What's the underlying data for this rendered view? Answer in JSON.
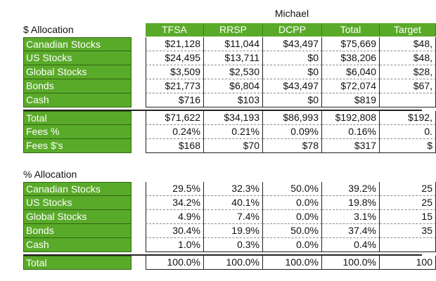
{
  "owner": "Michael",
  "columns": [
    "TFSA",
    "RRSP",
    "DCPP",
    "Total",
    "Target"
  ],
  "dollar_section": {
    "title": "$ Allocation",
    "rows": [
      {
        "label": "Canadian Stocks",
        "values": [
          "$21,128",
          "$11,044",
          "$43,497",
          "$75,669",
          "$48,"
        ]
      },
      {
        "label": "US Stocks",
        "values": [
          "$24,495",
          "$13,711",
          "$0",
          "$38,206",
          "$48,"
        ]
      },
      {
        "label": "Global Stocks",
        "values": [
          "$3,509",
          "$2,530",
          "$0",
          "$6,040",
          "$28,"
        ]
      },
      {
        "label": "Bonds",
        "values": [
          "$21,773",
          "$6,804",
          "$43,497",
          "$72,074",
          "$67,"
        ]
      },
      {
        "label": "Cash",
        "values": [
          "$716",
          "$103",
          "$0",
          "$819",
          ""
        ]
      }
    ],
    "summary_rows": [
      {
        "label": "Total",
        "values": [
          "$71,622",
          "$34,193",
          "$86,993",
          "$192,808",
          "$192,"
        ]
      },
      {
        "label": "Fees %",
        "values": [
          "0.24%",
          "0.21%",
          "0.09%",
          "0.16%",
          "0."
        ]
      },
      {
        "label": "Fees $'s",
        "values": [
          "$168",
          "$70",
          "$78",
          "$317",
          "$"
        ]
      }
    ]
  },
  "percent_section": {
    "title": "% Allocation",
    "rows": [
      {
        "label": "Canadian Stocks",
        "values": [
          "29.5%",
          "32.3%",
          "50.0%",
          "39.2%",
          "25"
        ]
      },
      {
        "label": "US Stocks",
        "values": [
          "34.2%",
          "40.1%",
          "0.0%",
          "19.8%",
          "25"
        ]
      },
      {
        "label": "Global Stocks",
        "values": [
          "4.9%",
          "7.4%",
          "0.0%",
          "3.1%",
          "15"
        ]
      },
      {
        "label": "Bonds",
        "values": [
          "30.4%",
          "19.9%",
          "50.0%",
          "37.4%",
          "35"
        ]
      },
      {
        "label": "Cash",
        "values": [
          "1.0%",
          "0.3%",
          "0.0%",
          "0.4%",
          ""
        ]
      }
    ],
    "summary_rows": [
      {
        "label": "Total",
        "values": [
          "100.0%",
          "100.0%",
          "100.0%",
          "100.0%",
          "100"
        ]
      }
    ]
  },
  "colors": {
    "header_green": "#5aaa2a",
    "label_green": "#5aaa2a"
  }
}
